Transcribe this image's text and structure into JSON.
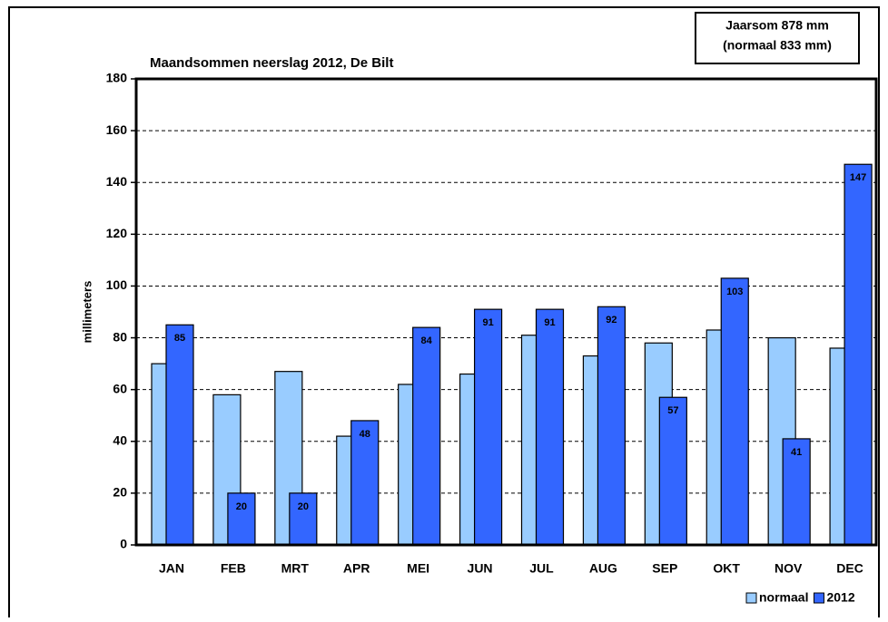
{
  "chart_data": {
    "type": "bar",
    "title": "Maandsommen neerslag 2012, De Bilt",
    "annotation": [
      "Jaarsom 878 mm",
      "(normaal  833 mm)"
    ],
    "y_label": "millimeters",
    "categories": [
      "JAN",
      "FEB",
      "MRT",
      "APR",
      "MEI",
      "JUN",
      "JUL",
      "AUG",
      "SEP",
      "OKT",
      "NOV",
      "DEC"
    ],
    "series": [
      {
        "name": "normaal",
        "color": "#99ccff",
        "values": [
          70,
          58,
          67,
          42,
          62,
          66,
          81,
          73,
          78,
          83,
          80,
          76
        ]
      },
      {
        "name": "2012",
        "color": "#3366ff",
        "values": [
          85,
          20,
          20,
          48,
          84,
          91,
          91,
          92,
          57,
          103,
          41,
          147
        ],
        "show_labels": true
      }
    ],
    "ylim": [
      0,
      180
    ],
    "yticks": [
      0,
      20,
      40,
      60,
      80,
      100,
      120,
      140,
      160,
      180
    ],
    "grid": true,
    "legend": "bottom-right"
  }
}
